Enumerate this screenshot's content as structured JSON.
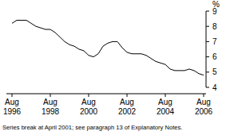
{
  "chart_data": {
    "type": "line",
    "y_label": "%",
    "annotations": [
      "Series break at April 2001; see paragraph 13 of Explanatory Notes."
    ],
    "categories": [
      "Aug 1996",
      null,
      null,
      null,
      null,
      null,
      null,
      null,
      "Aug 1998",
      null,
      null,
      null,
      null,
      null,
      null,
      null,
      "Aug 2000",
      null,
      null,
      null,
      null,
      null,
      null,
      null,
      "Aug 2002",
      null,
      null,
      null,
      null,
      null,
      null,
      null,
      "Aug 2004",
      null,
      null,
      null,
      null,
      null,
      null,
      null,
      "Aug 2006"
    ],
    "series": [
      {
        "name": "%",
        "color": "#000000",
        "values": [
          8.2,
          8.4,
          8.4,
          8.4,
          8.2,
          8.0,
          7.9,
          7.8,
          7.8,
          7.6,
          7.3,
          7.0,
          6.8,
          6.7,
          6.5,
          6.4,
          6.1,
          6.0,
          6.2,
          6.7,
          6.9,
          7.0,
          7.0,
          6.6,
          6.3,
          6.2,
          6.2,
          6.2,
          6.1,
          5.9,
          5.7,
          5.6,
          5.5,
          5.2,
          5.1,
          5.1,
          5.1,
          5.2,
          5.1,
          4.9,
          4.8
        ]
      }
    ],
    "ylim": [
      4,
      9
    ],
    "yticks": [
      4,
      5,
      6,
      7,
      8,
      9
    ],
    "grid": false
  }
}
